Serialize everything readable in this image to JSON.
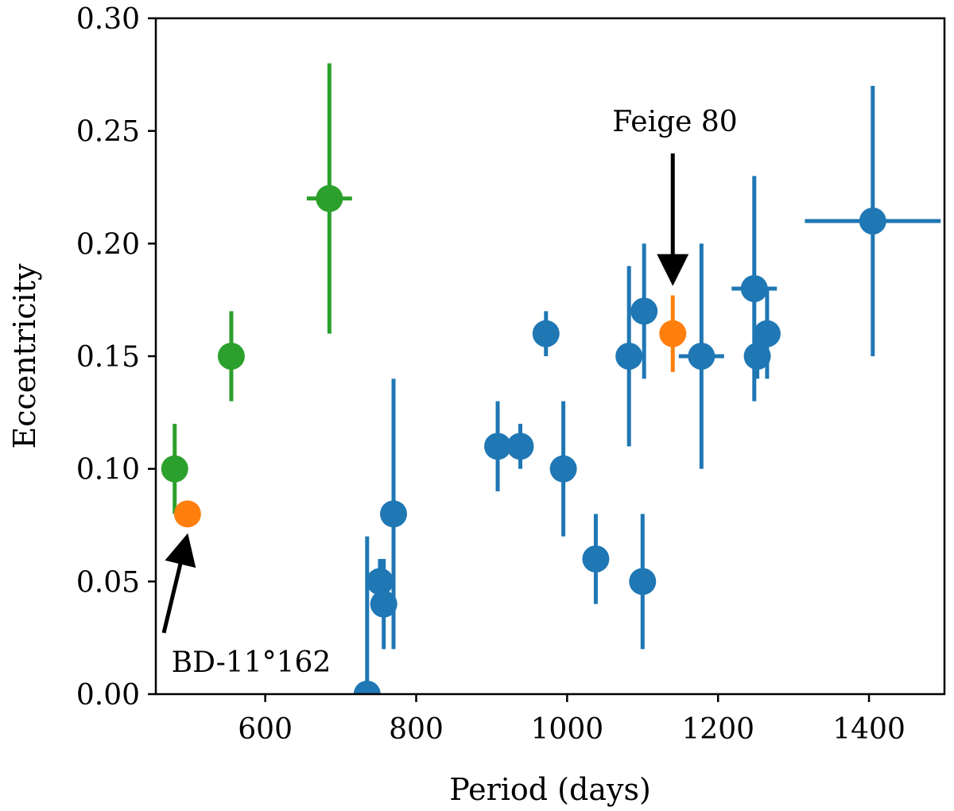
{
  "chart_data": {
    "type": "scatter",
    "xlabel": "Period (days)",
    "ylabel": "Eccentricity",
    "xlim": [
      455,
      1500
    ],
    "ylim": [
      0,
      0.3
    ],
    "xticks": [
      600,
      800,
      1000,
      1200,
      1400
    ],
    "xtick_labels": [
      "600",
      "800",
      "1000",
      "1200",
      "1400"
    ],
    "yticks": [
      0.0,
      0.05,
      0.1,
      0.15,
      0.2,
      0.25,
      0.3
    ],
    "ytick_labels": [
      "0.00",
      "0.05",
      "0.10",
      "0.15",
      "0.20",
      "0.25",
      "0.30"
    ],
    "grid": false,
    "series": [
      {
        "color": "#2ca02c",
        "points": [
          {
            "x": 480,
            "y": 0.1,
            "yerr": 0.02,
            "xerr": 0
          },
          {
            "x": 555,
            "y": 0.15,
            "yerr": 0.02,
            "xerr": 0
          },
          {
            "x": 685,
            "y": 0.22,
            "yerr": 0.06,
            "xerr": 30
          }
        ]
      },
      {
        "color": "#ff7f0e",
        "points": [
          {
            "x": 497,
            "y": 0.08,
            "yerr": 0,
            "xerr": 0
          },
          {
            "x": 1140,
            "y": 0.16,
            "yerr": 0.017,
            "xerr": 0
          }
        ]
      },
      {
        "color": "#1f77b4",
        "points": [
          {
            "x": 735,
            "y": 0.0,
            "yerr": 0.07,
            "xerr": 0
          },
          {
            "x": 752,
            "y": 0.05,
            "yerr": 0.01,
            "xerr": 0
          },
          {
            "x": 757,
            "y": 0.04,
            "yerr": 0.02,
            "xerr": 0
          },
          {
            "x": 770,
            "y": 0.08,
            "yerr": 0.06,
            "xerr": 0
          },
          {
            "x": 908,
            "y": 0.11,
            "yerr": 0.02,
            "xerr": 0
          },
          {
            "x": 938,
            "y": 0.11,
            "yerr": 0.01,
            "xerr": 0
          },
          {
            "x": 972,
            "y": 0.16,
            "yerr": 0.01,
            "xerr": 0
          },
          {
            "x": 995,
            "y": 0.1,
            "yerr": 0.03,
            "xerr": 0
          },
          {
            "x": 1038,
            "y": 0.06,
            "yerr": 0.02,
            "xerr": 0
          },
          {
            "x": 1082,
            "y": 0.15,
            "yerr": 0.04,
            "xerr": 0
          },
          {
            "x": 1100,
            "y": 0.05,
            "yerr": 0.03,
            "xerr": 0
          },
          {
            "x": 1102,
            "y": 0.17,
            "yerr": 0.03,
            "xerr": 0
          },
          {
            "x": 1178,
            "y": 0.15,
            "yerr": 0.05,
            "xerr": 30
          },
          {
            "x": 1248,
            "y": 0.18,
            "yerr": 0.05,
            "xerr": 30
          },
          {
            "x": 1252,
            "y": 0.15,
            "yerr": 0.01,
            "xerr": 0
          },
          {
            "x": 1265,
            "y": 0.16,
            "yerr": 0.02,
            "xerr": 0
          },
          {
            "x": 1405,
            "y": 0.21,
            "yerr": 0.06,
            "xerr": 90
          }
        ]
      }
    ],
    "annotations": [
      {
        "text": "BD-11°162",
        "target": {
          "x": 497,
          "y": 0.08
        }
      },
      {
        "text": "Feige 80",
        "target": {
          "x": 1140,
          "y": 0.16
        }
      }
    ]
  }
}
